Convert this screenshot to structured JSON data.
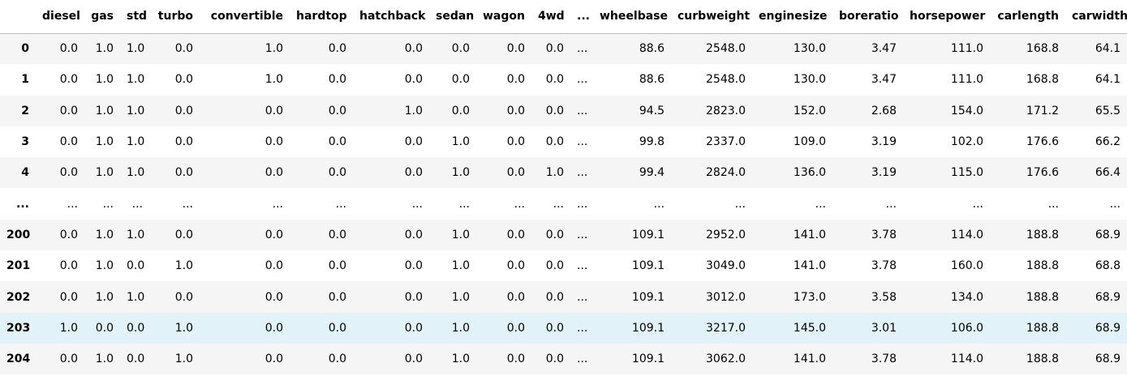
{
  "table": {
    "columns": [
      "diesel",
      "gas",
      "std",
      "turbo",
      "convertible",
      "hardtop",
      "hatchback",
      "sedan",
      "wagon",
      "4wd",
      "...",
      "wheelbase",
      "curbweight",
      "enginesize",
      "boreratio",
      "horsepower",
      "carlength",
      "carwidth"
    ],
    "rows": [
      {
        "index": "0",
        "cells": [
          "0.0",
          "1.0",
          "1.0",
          "0.0",
          "1.0",
          "0.0",
          "0.0",
          "0.0",
          "0.0",
          "0.0",
          "...",
          "88.6",
          "2548.0",
          "130.0",
          "3.47",
          "111.0",
          "168.8",
          "64.1"
        ]
      },
      {
        "index": "1",
        "cells": [
          "0.0",
          "1.0",
          "1.0",
          "0.0",
          "1.0",
          "0.0",
          "0.0",
          "0.0",
          "0.0",
          "0.0",
          "...",
          "88.6",
          "2548.0",
          "130.0",
          "3.47",
          "111.0",
          "168.8",
          "64.1"
        ]
      },
      {
        "index": "2",
        "cells": [
          "0.0",
          "1.0",
          "1.0",
          "0.0",
          "0.0",
          "0.0",
          "1.0",
          "0.0",
          "0.0",
          "0.0",
          "...",
          "94.5",
          "2823.0",
          "152.0",
          "2.68",
          "154.0",
          "171.2",
          "65.5"
        ]
      },
      {
        "index": "3",
        "cells": [
          "0.0",
          "1.0",
          "1.0",
          "0.0",
          "0.0",
          "0.0",
          "0.0",
          "1.0",
          "0.0",
          "0.0",
          "...",
          "99.8",
          "2337.0",
          "109.0",
          "3.19",
          "102.0",
          "176.6",
          "66.2"
        ]
      },
      {
        "index": "4",
        "cells": [
          "0.0",
          "1.0",
          "1.0",
          "0.0",
          "0.0",
          "0.0",
          "0.0",
          "1.0",
          "0.0",
          "1.0",
          "...",
          "99.4",
          "2824.0",
          "136.0",
          "3.19",
          "115.0",
          "176.6",
          "66.4"
        ]
      },
      {
        "index": "...",
        "cells": [
          "...",
          "...",
          "...",
          "...",
          "...",
          "...",
          "...",
          "...",
          "...",
          "...",
          "...",
          "...",
          "...",
          "...",
          "...",
          "...",
          "...",
          "..."
        ]
      },
      {
        "index": "200",
        "cells": [
          "0.0",
          "1.0",
          "1.0",
          "0.0",
          "0.0",
          "0.0",
          "0.0",
          "1.0",
          "0.0",
          "0.0",
          "...",
          "109.1",
          "2952.0",
          "141.0",
          "3.78",
          "114.0",
          "188.8",
          "68.9"
        ]
      },
      {
        "index": "201",
        "cells": [
          "0.0",
          "1.0",
          "0.0",
          "1.0",
          "0.0",
          "0.0",
          "0.0",
          "1.0",
          "0.0",
          "0.0",
          "...",
          "109.1",
          "3049.0",
          "141.0",
          "3.78",
          "160.0",
          "188.8",
          "68.8"
        ]
      },
      {
        "index": "202",
        "cells": [
          "0.0",
          "1.0",
          "1.0",
          "0.0",
          "0.0",
          "0.0",
          "0.0",
          "1.0",
          "0.0",
          "0.0",
          "...",
          "109.1",
          "3012.0",
          "173.0",
          "3.58",
          "134.0",
          "188.8",
          "68.9"
        ]
      },
      {
        "index": "203",
        "cells": [
          "1.0",
          "0.0",
          "0.0",
          "1.0",
          "0.0",
          "0.0",
          "0.0",
          "1.0",
          "0.0",
          "0.0",
          "...",
          "109.1",
          "3217.0",
          "145.0",
          "3.01",
          "106.0",
          "188.8",
          "68.9"
        ]
      },
      {
        "index": "204",
        "cells": [
          "0.0",
          "1.0",
          "0.0",
          "1.0",
          "0.0",
          "0.0",
          "0.0",
          "1.0",
          "0.0",
          "0.0",
          "...",
          "109.1",
          "3062.0",
          "141.0",
          "3.78",
          "114.0",
          "188.8",
          "68.9"
        ]
      }
    ],
    "hovered_row": "203",
    "colors": {
      "odd_row_bg": "#f5f5f5",
      "even_row_bg": "#ffffff",
      "hover_row_bg": "#e1f3f9",
      "header_border": "#bdbdbd",
      "text": "#000000"
    }
  }
}
